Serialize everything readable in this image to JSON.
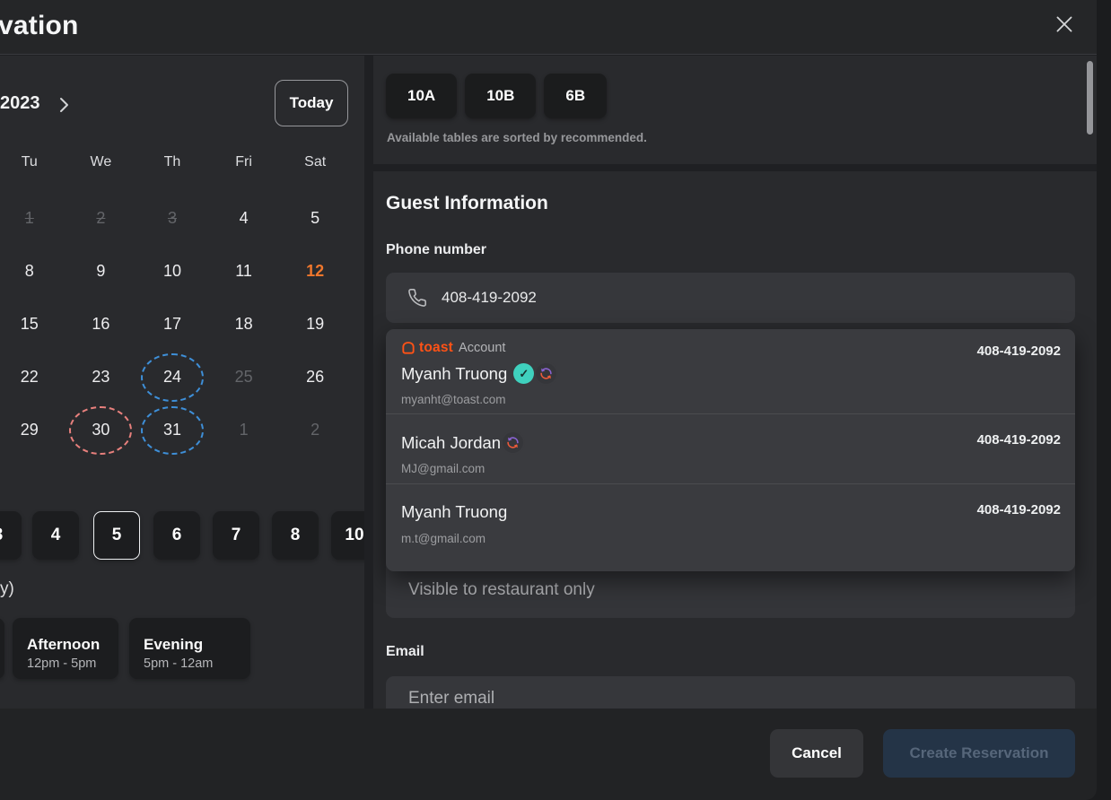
{
  "modal": {
    "title": "vation"
  },
  "calendar": {
    "year": "2023",
    "today": "Today",
    "dow": [
      "Tu",
      "We",
      "Th",
      "Fri",
      "Sat"
    ],
    "weeks": [
      [
        {
          "d": "1",
          "muted": true,
          "strike": true
        },
        {
          "d": "2",
          "muted": true,
          "strike": true
        },
        {
          "d": "3",
          "muted": true,
          "strike": true
        },
        {
          "d": "4"
        },
        {
          "d": "5"
        }
      ],
      [
        {
          "d": "8"
        },
        {
          "d": "9"
        },
        {
          "d": "10"
        },
        {
          "d": "11"
        },
        {
          "d": "12",
          "accent": true
        }
      ],
      [
        {
          "d": "15"
        },
        {
          "d": "16"
        },
        {
          "d": "17"
        },
        {
          "d": "18"
        },
        {
          "d": "19"
        }
      ],
      [
        {
          "d": "22"
        },
        {
          "d": "23"
        },
        {
          "d": "24",
          "circle": "blue"
        },
        {
          "d": "25",
          "muted": true
        },
        {
          "d": "26"
        }
      ],
      [
        {
          "d": "29"
        },
        {
          "d": "30",
          "circle": "red"
        },
        {
          "d": "31",
          "circle": "blue"
        },
        {
          "d": "1",
          "muted": true
        },
        {
          "d": "2",
          "muted": true
        }
      ]
    ]
  },
  "party": {
    "options": [
      "3",
      "4",
      "5",
      "6",
      "7",
      "8",
      "10"
    ],
    "selected": "5"
  },
  "timeofday": {
    "label": "y)",
    "slots": [
      {
        "title": "Afternoon",
        "range": "12pm - 5pm"
      },
      {
        "title": "Evening",
        "range": "5pm - 12am"
      }
    ]
  },
  "tables": {
    "chips": [
      "10A",
      "10B",
      "6B"
    ],
    "note": "Available tables are sorted by recommended."
  },
  "guest": {
    "heading": "Guest Information",
    "phone_label": "Phone number",
    "phone_value": "408-419-2092",
    "suggestions": [
      {
        "brand": "toast",
        "brand_suffix": "Account",
        "name": "Myanh Truong",
        "badges": [
          "verified",
          "sync"
        ],
        "email": "myanht@toast.com",
        "phone": "408-419-2092"
      },
      {
        "name": "Micah Jordan",
        "badges": [
          "sync"
        ],
        "email": "MJ@gmail.com",
        "phone": "408-419-2092"
      },
      {
        "name": "Myanh Truong",
        "badges": [],
        "email": "m.t@gmail.com",
        "phone": "408-419-2092"
      }
    ],
    "notes_placeholder": "Visible to restaurant only",
    "email_label": "Email",
    "email_placeholder": "Enter email"
  },
  "footer": {
    "cancel": "Cancel",
    "create": "Create Reservation"
  },
  "colors": {
    "brand_orange": "#ff5216",
    "selected_day_orange": "#f0772c",
    "circle_blue": "#3e8fd8",
    "circle_red": "#e8807d",
    "verified_teal": "#3fd1be",
    "sync_purple": "#8a63d2",
    "sync_orange": "#ef5b3a"
  }
}
